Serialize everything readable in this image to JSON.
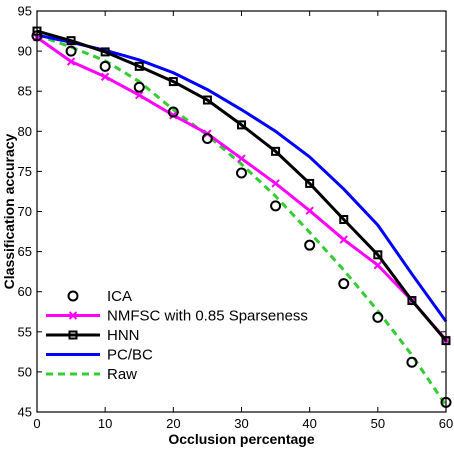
{
  "chart_data": {
    "type": "line",
    "title": "",
    "xlabel": "Occlusion percentage",
    "ylabel": "Classification accuracy",
    "xlim": [
      0,
      60
    ],
    "ylim": [
      45,
      95
    ],
    "xticks": [
      0,
      10,
      20,
      30,
      40,
      50,
      60
    ],
    "yticks": [
      45,
      50,
      55,
      60,
      65,
      70,
      75,
      80,
      85,
      90,
      95
    ],
    "grid": false,
    "legend_position": "bottom-left",
    "x": [
      0,
      5,
      10,
      15,
      20,
      25,
      30,
      35,
      40,
      45,
      50,
      55,
      60
    ],
    "series": [
      {
        "name": "ICA",
        "style": "markers",
        "marker": "circle",
        "color": "#000000",
        "values": [
          91.9,
          90.0,
          88.1,
          85.5,
          82.4,
          79.1,
          74.8,
          70.7,
          65.8,
          61.0,
          56.8,
          51.2,
          46.2
        ]
      },
      {
        "name": "NMFSC with 0.85 Sparseness",
        "style": "line",
        "marker": "x",
        "color": "#ff00ff",
        "values": [
          91.7,
          88.7,
          86.8,
          84.5,
          82.0,
          79.7,
          76.6,
          73.5,
          70.1,
          66.5,
          63.3,
          58.9,
          54.0
        ]
      },
      {
        "name": "HNN",
        "style": "line",
        "marker": "square",
        "color": "#000000",
        "values": [
          92.5,
          91.3,
          89.9,
          88.1,
          86.2,
          83.9,
          80.8,
          77.5,
          73.5,
          69.0,
          64.6,
          58.9,
          53.9
        ]
      },
      {
        "name": "PC/BC",
        "style": "line",
        "marker": "none",
        "color": "#0000ff",
        "values": [
          92.0,
          91.1,
          90.1,
          88.9,
          87.3,
          85.2,
          82.7,
          80.0,
          76.8,
          72.8,
          68.3,
          62.2,
          56.3
        ]
      },
      {
        "name": "Raw",
        "style": "dashed",
        "marker": "none",
        "color": "#33cc33",
        "values": [
          92.0,
          90.5,
          88.8,
          86.2,
          82.7,
          79.5,
          75.9,
          71.9,
          67.4,
          62.7,
          57.6,
          52.1,
          45.8
        ]
      }
    ]
  }
}
